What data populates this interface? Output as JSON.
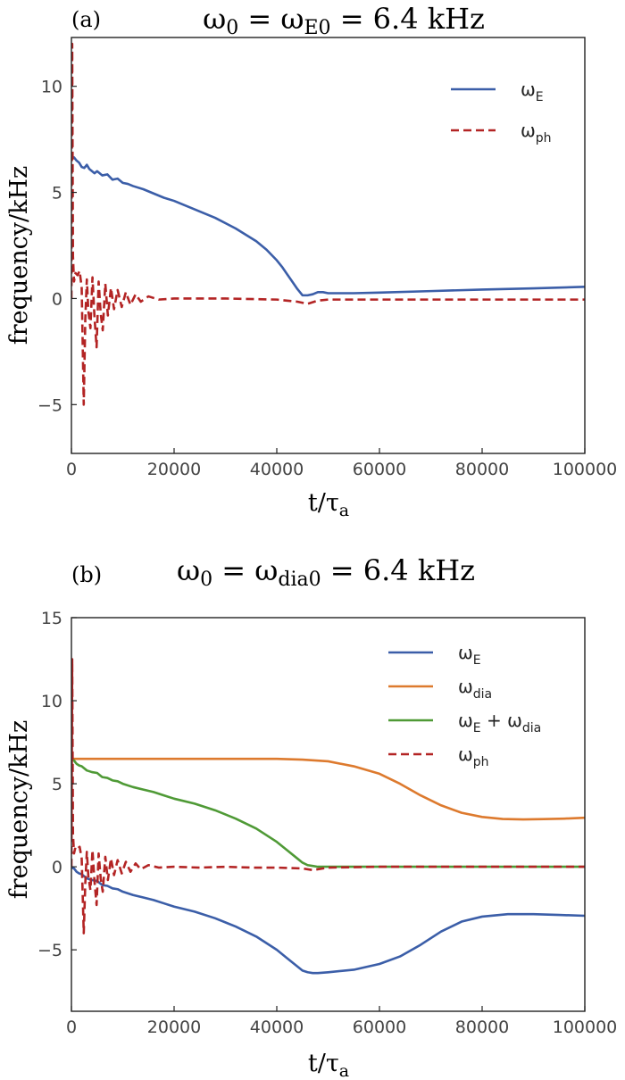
{
  "colors": {
    "omega_E": "#3b5ea8",
    "omega_dia": "#dd7a2e",
    "omega_E_plus_dia": "#4f9a36",
    "omega_ph": "#b32424"
  },
  "chart_data": [
    {
      "type": "line",
      "panel_label": "(a)",
      "title": "ω0 = ωE0 = 6.4 kHz",
      "xlabel": "t/τa",
      "ylabel": "frequency/kHz",
      "xlim": [
        0,
        100000
      ],
      "ylim": [
        -7.3,
        12.3
      ],
      "xticks": [
        0,
        20000,
        40000,
        60000,
        80000,
        100000
      ],
      "yticks": [
        -5,
        0,
        5,
        10
      ],
      "grid": false,
      "legend_position": "top-right",
      "series": [
        {
          "name": "ωE",
          "color_key": "omega_E",
          "dash": false,
          "x": [
            0,
            500,
            1000,
            1500,
            2000,
            2500,
            3000,
            3500,
            4000,
            4500,
            5000,
            6000,
            7000,
            8000,
            9000,
            10000,
            11000,
            12000,
            14000,
            16000,
            18000,
            20000,
            24000,
            28000,
            32000,
            36000,
            38000,
            40000,
            41000,
            42000,
            43000,
            44000,
            45000,
            46000,
            47000,
            48000,
            49000,
            50000,
            52000,
            55000,
            60000,
            70000,
            80000,
            90000,
            100000
          ],
          "y": [
            6.6,
            6.65,
            6.5,
            6.4,
            6.2,
            6.15,
            6.3,
            6.1,
            6.0,
            5.9,
            6.0,
            5.8,
            5.85,
            5.6,
            5.65,
            5.45,
            5.4,
            5.3,
            5.15,
            4.95,
            4.75,
            4.6,
            4.2,
            3.8,
            3.3,
            2.7,
            2.3,
            1.8,
            1.5,
            1.15,
            0.8,
            0.45,
            0.15,
            0.15,
            0.2,
            0.3,
            0.3,
            0.25,
            0.25,
            0.25,
            0.28,
            0.35,
            0.42,
            0.48,
            0.55
          ]
        },
        {
          "name": "ωph",
          "color_key": "omega_ph",
          "dash": true,
          "x": [
            0,
            150,
            300,
            500,
            800,
            1200,
            1600,
            2000,
            2400,
            2700,
            3000,
            3300,
            3700,
            4100,
            4500,
            4900,
            5300,
            5700,
            6100,
            6600,
            7100,
            7700,
            8300,
            9000,
            9800,
            10600,
            11500,
            12500,
            13500,
            15000,
            17000,
            20000,
            30000,
            40000,
            44000,
            46000,
            48000,
            50000,
            60000,
            70000,
            80000,
            90000,
            100000
          ],
          "y": [
            0,
            12.0,
            2.0,
            0.8,
            1.2,
            1.1,
            1.3,
            0.5,
            -5.0,
            -1.0,
            0.9,
            -0.6,
            -1.4,
            1.0,
            -0.9,
            -2.3,
            0.8,
            -0.7,
            -1.5,
            0.7,
            -0.8,
            0.5,
            -0.5,
            0.4,
            -0.4,
            0.3,
            -0.3,
            0.2,
            -0.15,
            0.1,
            -0.05,
            0.0,
            0.0,
            -0.05,
            -0.15,
            -0.25,
            -0.1,
            -0.05,
            -0.05,
            -0.05,
            -0.05,
            -0.05,
            -0.05
          ]
        }
      ]
    },
    {
      "type": "line",
      "panel_label": "(b)",
      "title": "ω0 = ωdia0 = 6.4 kHz",
      "xlabel": "t/τa",
      "ylabel": "frequency/kHz",
      "xlim": [
        0,
        100000
      ],
      "ylim": [
        -8.7,
        15.0
      ],
      "xticks": [
        0,
        20000,
        40000,
        60000,
        80000,
        100000
      ],
      "yticks": [
        -5,
        0,
        5,
        10,
        15
      ],
      "grid": false,
      "legend_position": "top-right",
      "series": [
        {
          "name": "ωE",
          "color_key": "omega_E",
          "dash": false,
          "x": [
            0,
            500,
            1000,
            1500,
            2000,
            3000,
            4000,
            5000,
            6000,
            7000,
            8000,
            9000,
            10000,
            12000,
            14000,
            16000,
            18000,
            20000,
            24000,
            28000,
            32000,
            36000,
            40000,
            42000,
            44000,
            45000,
            46000,
            47000,
            48000,
            50000,
            55000,
            60000,
            64000,
            68000,
            72000,
            76000,
            80000,
            85000,
            90000,
            95000,
            100000
          ],
          "y": [
            -0.05,
            -0.1,
            -0.3,
            -0.4,
            -0.45,
            -0.7,
            -0.8,
            -0.85,
            -1.1,
            -1.15,
            -1.3,
            -1.35,
            -1.5,
            -1.7,
            -1.85,
            -2.0,
            -2.2,
            -2.4,
            -2.7,
            -3.1,
            -3.6,
            -4.2,
            -5.0,
            -5.5,
            -6.0,
            -6.25,
            -6.35,
            -6.4,
            -6.4,
            -6.35,
            -6.2,
            -5.85,
            -5.4,
            -4.7,
            -3.9,
            -3.3,
            -3.0,
            -2.85,
            -2.85,
            -2.9,
            -2.95
          ]
        },
        {
          "name": "ωdia",
          "color_key": "omega_dia",
          "dash": false,
          "x": [
            0,
            10000,
            20000,
            30000,
            40000,
            45000,
            50000,
            55000,
            60000,
            64000,
            68000,
            72000,
            76000,
            80000,
            84000,
            88000,
            92000,
            96000,
            100000
          ],
          "y": [
            6.5,
            6.5,
            6.5,
            6.5,
            6.5,
            6.45,
            6.35,
            6.05,
            5.6,
            5.0,
            4.3,
            3.7,
            3.25,
            3.0,
            2.88,
            2.85,
            2.87,
            2.9,
            2.95
          ]
        },
        {
          "name": "ωE + ωdia",
          "color_key": "omega_E_plus_dia",
          "dash": false,
          "x": [
            0,
            500,
            1000,
            1500,
            2000,
            3000,
            4000,
            5000,
            6000,
            7000,
            8000,
            9000,
            10000,
            12000,
            14000,
            16000,
            18000,
            20000,
            24000,
            28000,
            32000,
            36000,
            40000,
            42000,
            44000,
            45000,
            46000,
            47000,
            48000,
            50000,
            60000,
            70000,
            80000,
            90000,
            100000
          ],
          "y": [
            6.45,
            6.4,
            6.2,
            6.1,
            6.05,
            5.8,
            5.7,
            5.65,
            5.4,
            5.35,
            5.2,
            5.15,
            5.0,
            4.8,
            4.65,
            4.5,
            4.3,
            4.1,
            3.8,
            3.4,
            2.9,
            2.3,
            1.5,
            1.0,
            0.5,
            0.25,
            0.1,
            0.05,
            0.0,
            0.0,
            0.0,
            0.0,
            0.0,
            0.0,
            0.0
          ]
        },
        {
          "name": "ωph",
          "color_key": "omega_ph",
          "dash": true,
          "x": [
            0,
            150,
            300,
            500,
            800,
            1200,
            1600,
            2000,
            2400,
            2700,
            3000,
            3300,
            3700,
            4100,
            4500,
            4900,
            5300,
            5700,
            6100,
            6600,
            7100,
            7700,
            8300,
            9000,
            9800,
            10600,
            11500,
            12500,
            13500,
            15000,
            17000,
            20000,
            25000,
            30000,
            35000,
            40000,
            45000,
            47000,
            50000,
            60000,
            70000,
            80000,
            90000,
            100000
          ],
          "y": [
            0,
            12.5,
            2.0,
            0.8,
            1.2,
            1.1,
            1.2,
            0.5,
            -4.0,
            -1.0,
            0.9,
            -0.6,
            -1.4,
            1.0,
            -0.9,
            -2.3,
            0.8,
            -0.7,
            -1.5,
            0.6,
            -0.8,
            0.5,
            -0.5,
            0.4,
            -0.4,
            0.3,
            -0.3,
            0.2,
            -0.15,
            0.1,
            -0.05,
            0.0,
            -0.05,
            0.0,
            -0.05,
            -0.05,
            -0.1,
            -0.2,
            -0.05,
            0.0,
            0.0,
            0.0,
            0.0,
            0.0
          ]
        }
      ]
    }
  ]
}
